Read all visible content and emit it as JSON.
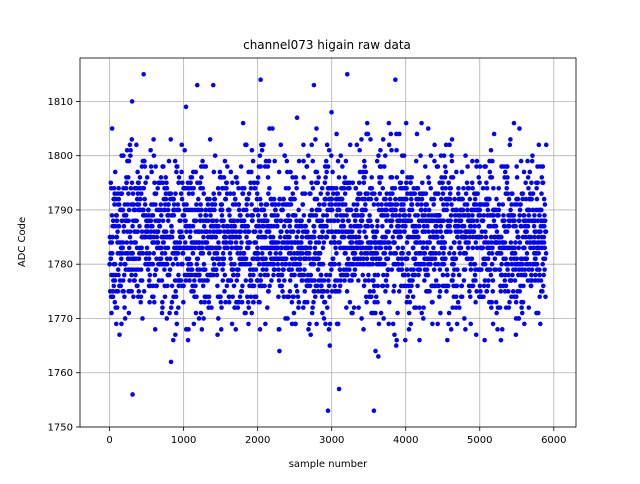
{
  "chart_data": {
    "type": "scatter",
    "title": "channel073 higain raw data",
    "xlabel": "sample number",
    "ylabel": "ADC Code",
    "xlim": [
      -400,
      6300
    ],
    "ylim": [
      1750,
      1818
    ],
    "xticks": [
      0,
      1000,
      2000,
      3000,
      4000,
      5000,
      6000
    ],
    "yticks": [
      1750,
      1760,
      1770,
      1780,
      1790,
      1800,
      1810
    ],
    "grid": true,
    "series": [
      {
        "color": "#0000ff",
        "marker": "circle",
        "n_samples": 5900,
        "baseline": 1785,
        "spread_std": 7.5,
        "range": [
          1753,
          1815
        ],
        "notable_points": [
          {
            "x": 460,
            "y": 1815
          },
          {
            "x": 3210,
            "y": 1815
          },
          {
            "x": 3860,
            "y": 1814
          },
          {
            "x": 1400,
            "y": 1813
          },
          {
            "x": 2760,
            "y": 1813
          },
          {
            "x": 2040,
            "y": 1814
          },
          {
            "x": 2950,
            "y": 1753
          },
          {
            "x": 3570,
            "y": 1753
          },
          {
            "x": 310,
            "y": 1756
          },
          {
            "x": 3100,
            "y": 1757
          }
        ]
      }
    ]
  }
}
